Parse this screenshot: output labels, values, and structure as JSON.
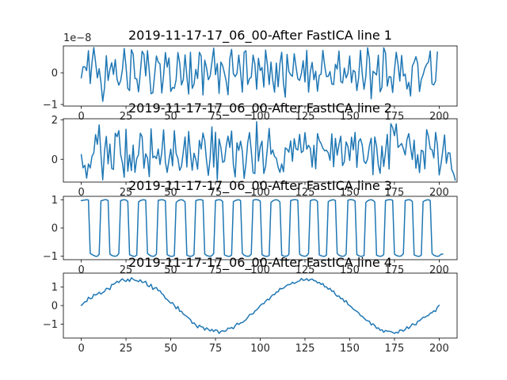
{
  "figure": {
    "background": "#ffffff",
    "line_color": "#1f77b4"
  },
  "chart_data": [
    {
      "type": "line",
      "title": "2019-11-17-17_06_00-After FastICA line 1",
      "offset_text": "1e−8",
      "xlim": [
        -10,
        210
      ],
      "ylim": [
        -1.05,
        0.85
      ],
      "xticks": [
        0,
        25,
        50,
        75,
        100,
        125,
        150,
        175,
        200
      ],
      "xtick_labels": [
        "0",
        "25",
        "50",
        "75",
        "100",
        "125",
        "150",
        "175",
        "200"
      ],
      "yticks": [
        -1,
        0
      ],
      "ytick_labels": [
        "−1",
        "0"
      ],
      "series": [
        {
          "x_start": 0,
          "x_step": 1,
          "values": [
            -0.16,
            0.19,
            0.19,
            0.07,
            0.7,
            -0.34,
            0.33,
            0.8,
            0.33,
            -0.16,
            0.13,
            -0.3,
            -0.9,
            -0.47,
            0.54,
            -0.24,
            0.11,
            0.32,
            -0.05,
            0.42,
            -0.2,
            -0.39,
            -0.25,
            0.1,
            0.77,
            0.2,
            -0.49,
            -0.56,
            0.73,
            0.59,
            -0.18,
            -0.19,
            -0.6,
            0.01,
            0.68,
            0.58,
            -0.1,
            0.7,
            0.05,
            -0.66,
            -0.63,
            -0.06,
            0.53,
            0.34,
            0.28,
            -0.64,
            -0.08,
            0.64,
            0.18,
            0.47,
            -0.59,
            -0.46,
            -0.49,
            -0.22,
            0.64,
            0.32,
            -0.38,
            -0.22,
            0.57,
            -0.11,
            -0.67,
            0.65,
            -0.49,
            -0.36,
            0.11,
            -0.18,
            0.65,
            0.53,
            -0.7,
            0.4,
            0.16,
            -0.22,
            -0.1,
            0.33,
            0.78,
            -0.06,
            0.29,
            -0.65,
            0.34,
            0.23,
            -0.01,
            -0.27,
            -0.69,
            0.45,
            0.74,
            -0.03,
            -0.12,
            -0.02,
            0.56,
            0.03,
            -0.61,
            0.65,
            0.7,
            -0.37,
            -0.18,
            -0.14,
            0.56,
            0.28,
            -0.52,
            0.46,
            0.07,
            0.17,
            -0.45,
            0.72,
            0.26,
            -0.37,
            0.34,
            -0.24,
            -0.61,
            0.31,
            -0.44,
            0.29,
            0.65,
            -0.34,
            -0.77,
            0.58,
            0.04,
            -0.06,
            -0.11,
            0.6,
            0.19,
            -0.19,
            -0.24,
            -0.02,
            0.38,
            -0.29,
            0.71,
            -0.61,
            0.04,
            0.33,
            -0.22,
            0.05,
            -0.58,
            -0.08,
            -0.04,
            0.71,
            0.23,
            -0.12,
            -0.11,
            0.04,
            -0.35,
            -0.37,
            0.27,
            0.12,
            0.69,
            -0.27,
            -0.32,
            0.15,
            -0.16,
            -0.02,
            0.53,
            -0.31,
            0.08,
            0.03,
            -0.56,
            -0.15,
            0.71,
            -0.03,
            -0.52,
            -0.11,
            0.79,
            0.44,
            -0.82,
            0.05,
            0.0,
            -0.07,
            0.56,
            -0.6,
            -0.46,
            0.79,
            0.63,
            -0.42,
            -0.12,
            -0.13,
            -0.62,
            0.08,
            0.65,
            0.27,
            -0.26,
            0.55,
            -0.1,
            -0.04,
            -0.51,
            -0.3,
            -0.73,
            0.21,
            0.34,
            0.51,
            0.29,
            -0.59,
            -0.21,
            -0.06,
            0.15,
            0.27,
            0.34,
            0.69,
            -0.35,
            -0.38,
            -0.25,
            0.66
          ]
        }
      ]
    },
    {
      "type": "line",
      "title": "2019-11-17-17_06_00-After FastICA line 2",
      "xlim": [
        -10,
        210
      ],
      "ylim": [
        -1.15,
        2.05
      ],
      "xticks": [
        0,
        25,
        50,
        75,
        100,
        125,
        150,
        175,
        200
      ],
      "xtick_labels": [
        "0",
        "25",
        "50",
        "75",
        "100",
        "125",
        "150",
        "175",
        "200"
      ],
      "yticks": [
        0,
        2
      ],
      "ytick_labels": [
        "0",
        "2"
      ],
      "series": [
        {
          "x_start": 0,
          "x_step": 1,
          "values": [
            0.24,
            -0.43,
            -0.3,
            -0.95,
            -0.23,
            -0.44,
            0.16,
            0.32,
            1.25,
            0.76,
            1.74,
            0.24,
            -1.04,
            0.44,
            1.16,
            -0.23,
            0.77,
            -0.46,
            -0.51,
            1.32,
            1.14,
            1.45,
            0.24,
            -0.18,
            -0.91,
            1.52,
            -0.6,
            0.23,
            -0.57,
            0.72,
            -0.66,
            0.04,
            0.24,
            1.32,
            1.14,
            -0.45,
            0.28,
            0.07,
            -0.88,
            1.54,
            0.08,
            0.16,
            0.03,
            0.52,
            -0.26,
            0.35,
            1.49,
            -0.14,
            -0.66,
            -0.04,
            0.52,
            -0.33,
            1.45,
            0.3,
            0.04,
            -0.56,
            -0.35,
            0.37,
            1.13,
            -0.39,
            1.41,
            0.31,
            -0.55,
            0.31,
            -0.01,
            -0.5,
            0.96,
            0.52,
            1.33,
            0.93,
            -0.08,
            -0.81,
            0.06,
            1.64,
            -0.39,
            1.37,
            -1.03,
            1.03,
            0.61,
            -0.15,
            -0.1,
            0.69,
            1.17,
            0.6,
            1.43,
            -0.27,
            -0.89,
            0.84,
            0.45,
            0.92,
            0.41,
            -0.96,
            -0.23,
            0.83,
            1.35,
            0.42,
            -0.68,
            -0.72,
            1.9,
            -0.09,
            0.63,
            0.92,
            -0.72,
            -0.36,
            0.57,
            1.56,
            0.26,
            0.47,
            0.14,
            0.06,
            -0.4,
            -0.66,
            -0.23,
            -0.63,
            0.58,
            0.51,
            0.36,
            0.93,
            -0.1,
            1.04,
            0.53,
            0.47,
            1.26,
            0.34,
            0.42,
            1.35,
            0.51,
            0.71,
            0.56,
            -0.39,
            0.71,
            -0.48,
            1.3,
            0.95,
            0.8,
            0.56,
            0.43,
            0.46,
            0.33,
            -0.05,
            1.29,
            -0.38,
            1.06,
            0.21,
            0.74,
            1.17,
            -0.32,
            -0.12,
            0.88,
            0.64,
            -0.06,
            1.12,
            0.48,
            1.36,
            -0.41,
            0.9,
            1.04,
            0.72,
            -0.1,
            -0.21,
            0.03,
            0.69,
            1.07,
            -0.78,
            1.13,
            0.67,
            -0.3,
            -0.71,
            0.67,
            -0.36,
            0.37,
            1.26,
            -0.49,
            1.8,
            1.6,
            1.19,
            1.79,
            0.6,
            0.7,
            0.8,
            0.53,
            0.22,
            1.0,
            1.3,
            0.6,
            -0.01,
            0.97,
            -0.45,
            0.24,
            -0.67,
            0.46,
            0.41,
            -0.48,
            1.5,
            1.15,
            0.53,
            0.49,
            0.07,
            1.36,
            0.72,
            -0.79,
            -0.25,
            0.44,
            1.23,
            -0.2,
            0.33,
            0.31,
            -0.52,
            -0.71,
            -1.05
          ]
        }
      ]
    },
    {
      "type": "line",
      "title": "2019-11-17-17_06_00-After FastICA line 3",
      "xlim": [
        -10,
        210
      ],
      "ylim": [
        -1.12,
        1.12
      ],
      "xticks": [
        0,
        25,
        50,
        75,
        100,
        125,
        150,
        175,
        200
      ],
      "xtick_labels": [
        "0",
        "25",
        "50",
        "75",
        "100",
        "125",
        "150",
        "175",
        "200"
      ],
      "yticks": [
        -1,
        0,
        1
      ],
      "ytick_labels": [
        "−1",
        "0",
        "1"
      ],
      "series": [
        {
          "x_start": 0,
          "x_step": 1,
          "values": [
            0.97,
            0.98,
            0.99,
            1.0,
            0.99,
            -0.9,
            -0.94,
            -0.97,
            -1.0,
            -1.0,
            -0.93,
            0.96,
            0.98,
            1.0,
            1.0,
            0.97,
            -0.92,
            -0.97,
            -0.99,
            -1.0,
            -0.98,
            -0.9,
            0.97,
            0.99,
            1.0,
            0.99,
            0.94,
            -0.95,
            -0.97,
            -1.0,
            -1.0,
            -0.96,
            0.92,
            0.97,
            0.99,
            1.0,
            0.98,
            -0.9,
            -0.95,
            -0.99,
            -1.0,
            -0.99,
            -0.92,
            0.98,
            0.99,
            1.0,
            0.99,
            0.96,
            -0.94,
            -0.98,
            -1.0,
            -1.0,
            -0.97,
            0.9,
            0.96,
            0.99,
            1.0,
            0.98,
            0.92,
            -0.96,
            -0.99,
            -1.0,
            -0.99,
            -0.94,
            0.97,
            0.99,
            1.0,
            1.0,
            0.98,
            -0.92,
            -0.97,
            -0.99,
            -1.0,
            -0.98,
            -0.9,
            0.97,
            0.99,
            1.0,
            0.99,
            0.94,
            -0.95,
            -0.98,
            -1.0,
            -1.0,
            -0.96,
            0.93,
            0.97,
            0.99,
            1.0,
            0.97,
            -0.9,
            -0.96,
            -0.99,
            -1.0,
            -0.99,
            -0.92,
            0.98,
            1.0,
            1.0,
            0.99,
            0.95,
            -0.94,
            -0.98,
            -1.0,
            -1.0,
            -0.97,
            0.9,
            0.96,
            0.99,
            1.0,
            0.98,
            0.92,
            -0.96,
            -0.99,
            -1.0,
            -0.99,
            -0.94,
            0.97,
            0.99,
            1.0,
            1.0,
            0.98,
            -0.92,
            -0.97,
            -0.99,
            -1.0,
            -0.98,
            -0.9,
            0.97,
            0.99,
            1.0,
            0.99,
            0.94,
            -0.95,
            -0.98,
            -1.0,
            -1.0,
            -0.96,
            0.93,
            0.97,
            0.99,
            1.0,
            0.97,
            -0.9,
            -0.96,
            -0.99,
            -1.0,
            -0.99,
            -0.92,
            0.98,
            1.0,
            1.0,
            0.99,
            0.95,
            -0.94,
            -0.98,
            -1.0,
            -1.0,
            -0.97,
            0.9,
            0.96,
            0.99,
            1.0,
            0.98,
            0.92,
            -0.96,
            -0.99,
            -1.0,
            -0.99,
            -0.94,
            0.97,
            0.99,
            1.0,
            1.0,
            0.98,
            -0.92,
            -0.97,
            -0.99,
            -1.0,
            -0.98,
            -0.9,
            0.97,
            0.99,
            1.0,
            0.99,
            0.94,
            -0.95,
            -0.98,
            -1.0,
            -1.0,
            -0.96,
            0.93,
            0.97,
            0.99,
            1.0,
            0.97,
            -0.9,
            -0.96,
            -0.99,
            -1.0,
            -0.99,
            -0.93,
            -0.92
          ]
        }
      ]
    },
    {
      "type": "line",
      "title": "2019-11-17-17_06_00-After FastICA line 4",
      "xlim": [
        -10,
        210
      ],
      "ylim": [
        -1.75,
        1.75
      ],
      "xticks": [
        0,
        25,
        50,
        75,
        100,
        125,
        150,
        175,
        200
      ],
      "xtick_labels": [
        "0",
        "25",
        "50",
        "75",
        "100",
        "125",
        "150",
        "175",
        "200"
      ],
      "yticks": [
        -1,
        0,
        1
      ],
      "ytick_labels": [
        "−1",
        "0",
        "1"
      ],
      "series": [
        {
          "x_start": 0,
          "x_step": 1,
          "values": [
            0.01,
            0.1,
            0.21,
            0.21,
            0.45,
            0.37,
            0.39,
            0.6,
            0.57,
            0.62,
            0.72,
            0.62,
            0.7,
            0.76,
            0.93,
            0.92,
            0.86,
            1.14,
            1.14,
            1.21,
            1.31,
            1.24,
            1.37,
            1.44,
            1.35,
            1.3,
            1.43,
            1.3,
            1.5,
            1.42,
            1.36,
            1.34,
            1.29,
            1.39,
            1.25,
            1.26,
            1.31,
            1.07,
            1.02,
            1.15,
            0.87,
            0.95,
            0.97,
            0.8,
            0.8,
            0.64,
            0.57,
            0.38,
            0.33,
            0.22,
            0.13,
            0.16,
            0.01,
            -0.17,
            -0.05,
            -0.31,
            -0.31,
            -0.46,
            -0.52,
            -0.59,
            -0.67,
            -0.75,
            -0.96,
            -0.93,
            -1.05,
            -1.2,
            -1.06,
            -1.14,
            -1.16,
            -1.32,
            -1.2,
            -1.28,
            -1.37,
            -1.28,
            -1.4,
            -1.3,
            -1.34,
            -1.5,
            -1.39,
            -1.35,
            -1.39,
            -1.35,
            -1.21,
            -1.23,
            -1.18,
            -1.25,
            -1.09,
            -0.95,
            -1.02,
            -0.93,
            -0.92,
            -0.84,
            -0.77,
            -0.64,
            -0.49,
            -0.46,
            -0.45,
            -0.3,
            -0.23,
            -0.13,
            0.01,
            0.09,
            0.1,
            0.24,
            0.34,
            0.31,
            0.48,
            0.58,
            0.59,
            0.73,
            0.74,
            0.93,
            0.9,
            0.94,
            1.02,
            1.11,
            1.13,
            1.15,
            1.26,
            1.19,
            1.24,
            1.3,
            1.33,
            1.46,
            1.36,
            1.38,
            1.45,
            1.34,
            1.41,
            1.43,
            1.35,
            1.33,
            1.22,
            1.25,
            1.14,
            1.19,
            1.01,
            1.01,
            0.88,
            0.93,
            0.77,
            0.79,
            0.59,
            0.5,
            0.52,
            0.37,
            0.38,
            0.2,
            0.27,
            0.06,
            0.0,
            -0.08,
            -0.19,
            -0.26,
            -0.31,
            -0.39,
            -0.54,
            -0.58,
            -0.67,
            -0.78,
            -0.82,
            -0.84,
            -1.04,
            -0.98,
            -1.07,
            -1.23,
            -1.2,
            -1.33,
            -1.3,
            -1.44,
            -1.34,
            -1.38,
            -1.38,
            -1.4,
            -1.45,
            -1.5,
            -1.44,
            -1.48,
            -1.32,
            -1.32,
            -1.38,
            -1.29,
            -1.14,
            -1.24,
            -1.12,
            -0.98,
            -1.03,
            -1.04,
            -0.84,
            -0.82,
            -0.73,
            -0.63,
            -0.63,
            -0.57,
            -0.53,
            -0.41,
            -0.38,
            -0.28,
            -0.32,
            -0.08,
            0.02
          ]
        }
      ]
    }
  ]
}
